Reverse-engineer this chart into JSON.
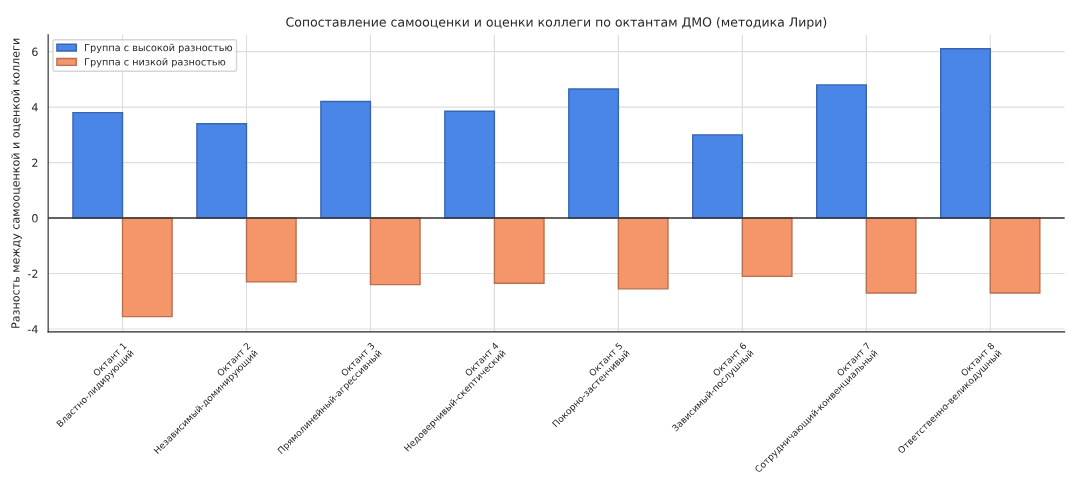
{
  "chart_data": {
    "type": "bar",
    "title": "Сопоставление самооценки и оценки коллеги по октантам ДМО (методика Лири)",
    "ylabel": "Разность между самооценкой и оценкой коллеги",
    "categories": [
      "Октант 1\nВластно-лидирующий",
      "Октант 2\nНезависимый-доминирующий",
      "Октант 3\nПрямолинейный-агрессивный",
      "Октант 4\nНедоверчивый-скептический",
      "Октант 5\nПокорно-застенчивый",
      "Октант 6\nЗависимый-послушный",
      "Октант 7\nСотрудничающий-конвенциальный",
      "Октант 8\nОтветственно-великодушный"
    ],
    "series": [
      {
        "name": "Группа с высокой разностью",
        "color": "#4a86e8",
        "values": [
          3.8,
          3.4,
          4.2,
          3.85,
          4.65,
          3.0,
          4.8,
          6.1
        ]
      },
      {
        "name": "Группа с низкой разностью",
        "color": "#f4956a",
        "values": [
          -3.55,
          -2.3,
          -2.4,
          -2.35,
          -2.55,
          -2.1,
          -2.7,
          -2.7
        ]
      }
    ],
    "ylim": [
      -4.1,
      6.6
    ],
    "yticks": [
      -4,
      -2,
      0,
      2,
      4,
      6
    ],
    "ref_lines": [
      {
        "axis": "y",
        "value": 0,
        "color": "#333333"
      }
    ],
    "grid": true,
    "legend": "top left"
  }
}
